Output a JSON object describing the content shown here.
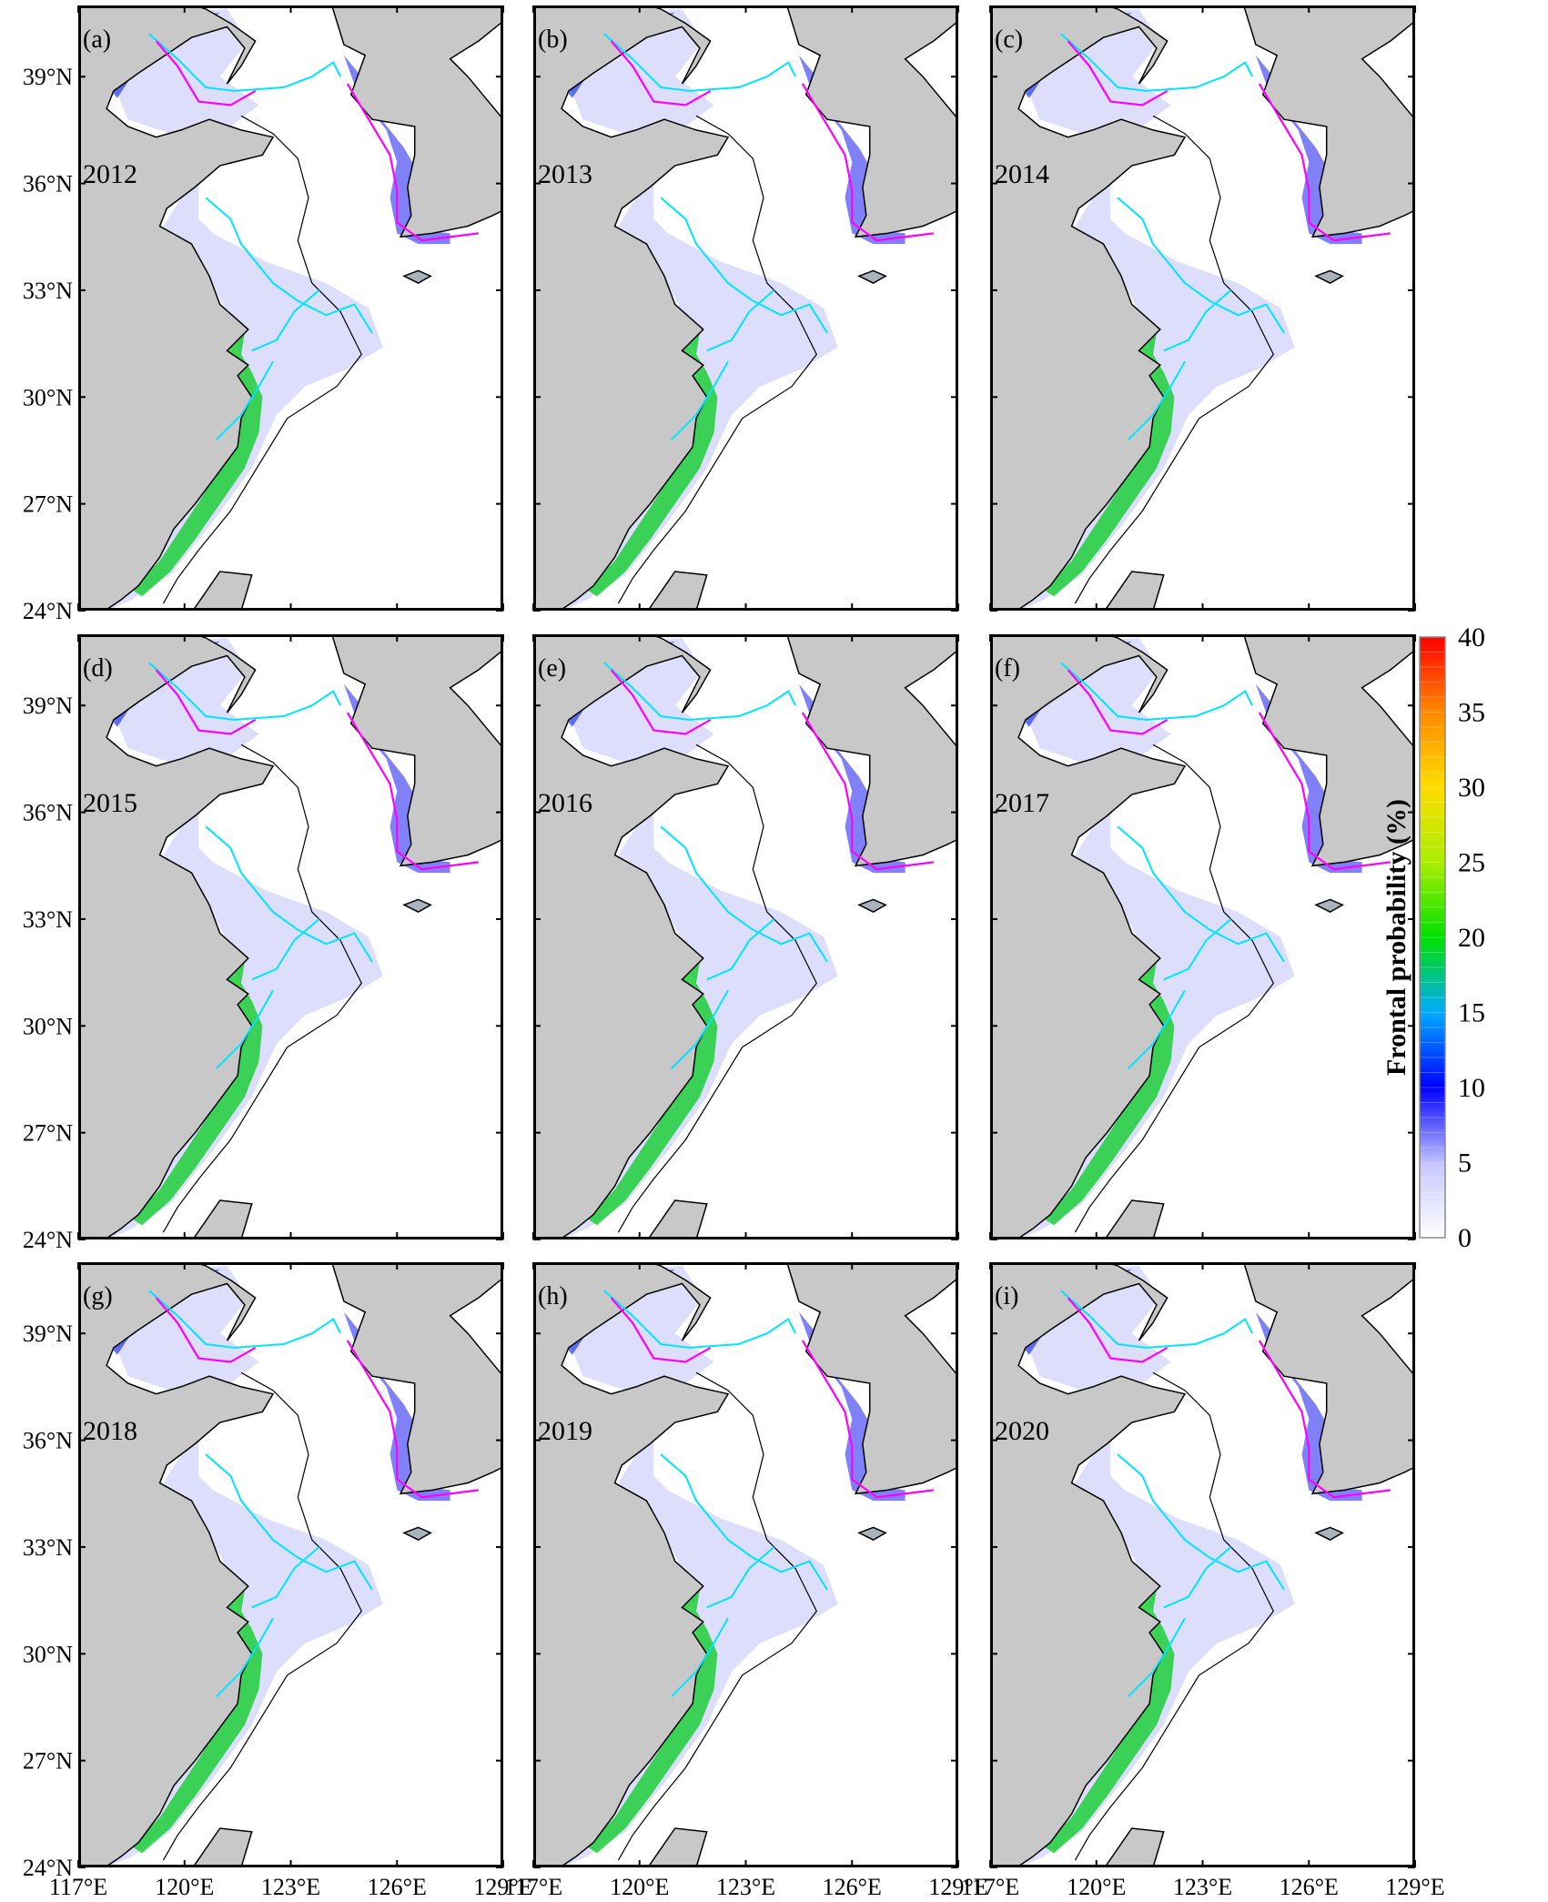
{
  "figure": {
    "panels": [
      {
        "letter": "(a)",
        "year": "2012"
      },
      {
        "letter": "(b)",
        "year": "2013"
      },
      {
        "letter": "(c)",
        "year": "2014"
      },
      {
        "letter": "(d)",
        "year": "2015"
      },
      {
        "letter": "(e)",
        "year": "2016"
      },
      {
        "letter": "(f)",
        "year": "2017"
      },
      {
        "letter": "(g)",
        "year": "2018"
      },
      {
        "letter": "(h)",
        "year": "2019"
      },
      {
        "letter": "(i)",
        "year": "2020"
      }
    ],
    "lat_ticks": [
      "39°N",
      "36°N",
      "33°N",
      "30°N",
      "27°N",
      "24°N"
    ],
    "lon_ticks": [
      "117°E",
      "120°E",
      "123°E",
      "126°E",
      "129°E"
    ],
    "colorbar": {
      "label": "Frontal probability (%)",
      "ticks": [
        "40",
        "35",
        "30",
        "25",
        "20",
        "15",
        "10",
        "5",
        "0"
      ],
      "min": 0,
      "max": 40
    },
    "colors": {
      "land": "#c8c8c8",
      "sea": "#ffffff",
      "contour_cyan": "#00e5ff",
      "contour_magenta": "#ff00ff",
      "frame": "#000000"
    }
  }
}
